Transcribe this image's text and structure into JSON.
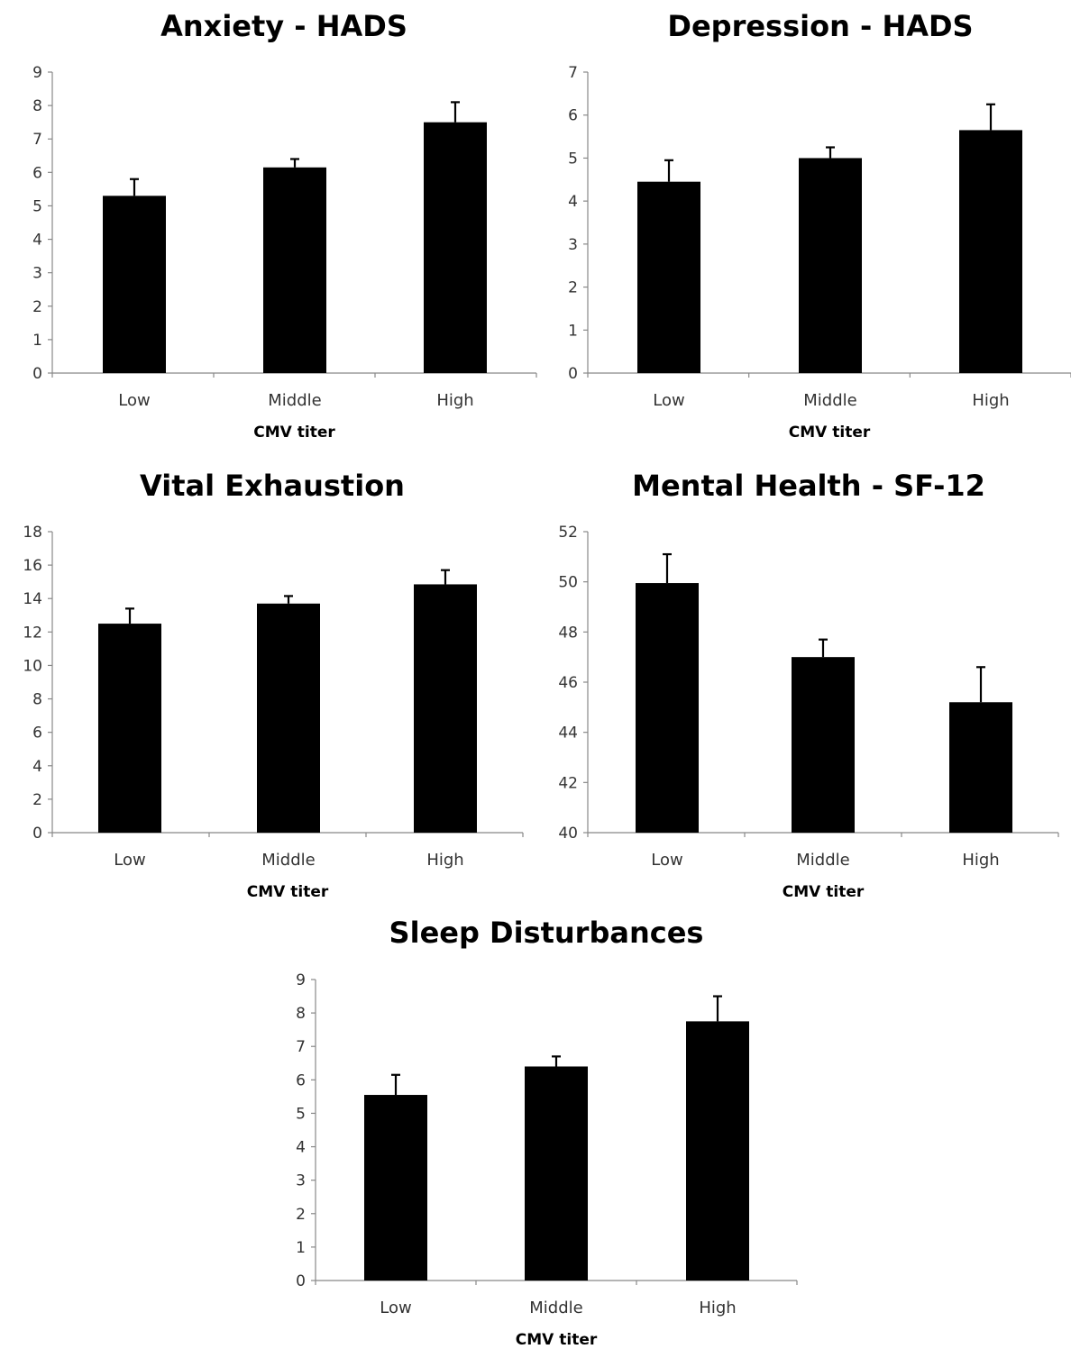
{
  "colors": {
    "bar": "#000000",
    "axis": "#888888",
    "background": "#ffffff"
  },
  "chart_data": [
    {
      "type": "bar",
      "title": "Anxiety - HADS",
      "xlabel": "CMV titer",
      "ylabel": "",
      "categories": [
        "Low",
        "Middle",
        "High"
      ],
      "values": [
        5.3,
        6.15,
        7.5
      ],
      "error_upper": [
        0.5,
        0.25,
        0.6
      ],
      "ylim": [
        0,
        9
      ],
      "yticks": [
        0,
        1,
        2,
        3,
        4,
        5,
        6,
        7,
        8,
        9
      ],
      "grid": false,
      "legend": "none"
    },
    {
      "type": "bar",
      "title": "Depression - HADS",
      "xlabel": "CMV titer",
      "ylabel": "",
      "categories": [
        "Low",
        "Middle",
        "High"
      ],
      "values": [
        4.45,
        5.0,
        5.65
      ],
      "error_upper": [
        0.5,
        0.25,
        0.6
      ],
      "ylim": [
        0,
        7
      ],
      "yticks": [
        0,
        1,
        2,
        3,
        4,
        5,
        6,
        7
      ],
      "grid": false,
      "legend": "none"
    },
    {
      "type": "bar",
      "title": "Vital Exhaustion",
      "xlabel": "CMV titer",
      "ylabel": "",
      "categories": [
        "Low",
        "Middle",
        "High"
      ],
      "values": [
        12.5,
        13.7,
        14.85
      ],
      "error_upper": [
        0.9,
        0.45,
        0.85
      ],
      "ylim": [
        0,
        18
      ],
      "yticks": [
        0,
        2,
        4,
        6,
        8,
        10,
        12,
        14,
        16,
        18
      ],
      "grid": false,
      "legend": "none"
    },
    {
      "type": "bar",
      "title": "Mental Health - SF-12",
      "xlabel": "CMV titer",
      "ylabel": "",
      "categories": [
        "Low",
        "Middle",
        "High"
      ],
      "values": [
        49.95,
        47.0,
        45.2
      ],
      "error_upper": [
        1.15,
        0.7,
        1.4
      ],
      "ylim": [
        40,
        52
      ],
      "yticks": [
        40,
        42,
        44,
        46,
        48,
        50,
        52
      ],
      "grid": false,
      "legend": "none"
    },
    {
      "type": "bar",
      "title": "Sleep Disturbances",
      "xlabel": "CMV titer",
      "ylabel": "",
      "categories": [
        "Low",
        "Middle",
        "High"
      ],
      "values": [
        5.55,
        6.4,
        7.75
      ],
      "error_upper": [
        0.6,
        0.3,
        0.75
      ],
      "ylim": [
        0,
        9
      ],
      "yticks": [
        0,
        1,
        2,
        3,
        4,
        5,
        6,
        7,
        8,
        9
      ],
      "grid": false,
      "legend": "none"
    }
  ]
}
